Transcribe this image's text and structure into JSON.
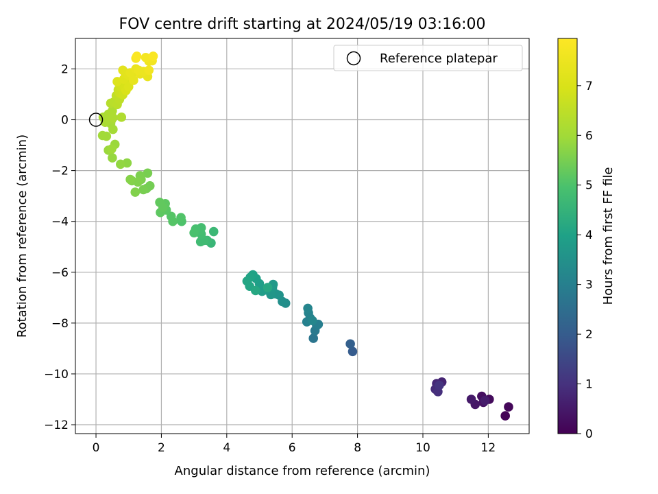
{
  "chart_data": {
    "type": "scatter",
    "title": "FOV centre drift starting at 2024/05/19 03:16:00",
    "xlabel": "Angular distance from reference (arcmin)",
    "ylabel": "Rotation from reference (arcmin)",
    "xlim": [
      -0.63,
      13.25
    ],
    "ylim": [
      -12.35,
      3.2
    ],
    "x_ticks": [
      0,
      2,
      4,
      6,
      8,
      10,
      12
    ],
    "y_ticks": [
      -12,
      -10,
      -8,
      -6,
      -4,
      -2,
      0,
      2
    ],
    "grid": true,
    "colormap": "viridis",
    "colorbar": {
      "label": "Hours from first FF file",
      "range": [
        0,
        7.95
      ],
      "ticks": [
        0,
        1,
        2,
        3,
        4,
        5,
        6,
        7
      ]
    },
    "legend": {
      "position": "top-right",
      "entries": [
        {
          "marker": "open-circle",
          "label": "Reference platepar"
        }
      ]
    },
    "reference_point": {
      "x": 0,
      "y": 0
    },
    "points": [
      [
        12.52,
        -11.65,
        0.05
      ],
      [
        12.62,
        -11.3,
        0.12
      ],
      [
        12.03,
        -11.0,
        0.2
      ],
      [
        11.8,
        -10.88,
        0.28
      ],
      [
        11.85,
        -11.12,
        0.35
      ],
      [
        11.6,
        -11.2,
        0.42
      ],
      [
        11.48,
        -11.0,
        0.5
      ],
      [
        11.9,
        -11.05,
        0.55
      ],
      [
        10.58,
        -10.32,
        0.7
      ],
      [
        10.42,
        -10.38,
        0.8
      ],
      [
        10.38,
        -10.6,
        0.88
      ],
      [
        10.46,
        -10.7,
        0.95
      ],
      [
        10.5,
        -10.45,
        1.05
      ],
      [
        7.85,
        -9.12,
        2.0
      ],
      [
        7.78,
        -8.82,
        2.1
      ],
      [
        6.65,
        -8.6,
        2.7
      ],
      [
        6.7,
        -8.3,
        2.8
      ],
      [
        6.75,
        -8.1,
        2.9
      ],
      [
        6.8,
        -8.05,
        2.95
      ],
      [
        6.55,
        -7.8,
        3.0
      ],
      [
        6.45,
        -7.95,
        3.05
      ],
      [
        6.5,
        -7.6,
        3.1
      ],
      [
        6.48,
        -7.42,
        3.15
      ],
      [
        6.62,
        -7.9,
        3.2
      ],
      [
        5.8,
        -7.22,
        3.4
      ],
      [
        5.7,
        -7.15,
        3.45
      ],
      [
        5.6,
        -6.9,
        3.55
      ],
      [
        5.5,
        -6.85,
        3.6
      ],
      [
        5.35,
        -6.88,
        3.65
      ],
      [
        5.4,
        -6.6,
        3.7
      ],
      [
        5.42,
        -6.48,
        3.75
      ],
      [
        5.2,
        -6.7,
        3.8
      ],
      [
        5.08,
        -6.75,
        3.85
      ],
      [
        5.0,
        -6.45,
        3.9
      ],
      [
        4.9,
        -6.25,
        3.95
      ],
      [
        4.8,
        -6.1,
        4.0
      ],
      [
        4.72,
        -6.2,
        4.05
      ],
      [
        4.62,
        -6.35,
        4.1
      ],
      [
        4.7,
        -6.55,
        4.1
      ],
      [
        4.88,
        -6.72,
        4.15
      ],
      [
        5.25,
        -6.6,
        4.15
      ],
      [
        3.52,
        -4.85,
        4.6
      ],
      [
        3.6,
        -4.4,
        4.65
      ],
      [
        3.4,
        -4.75,
        4.7
      ],
      [
        3.3,
        -4.75,
        4.75
      ],
      [
        3.2,
        -4.8,
        4.75
      ],
      [
        3.22,
        -4.5,
        4.8
      ],
      [
        3.18,
        -4.35,
        4.85
      ],
      [
        3.22,
        -4.25,
        4.85
      ],
      [
        3.05,
        -4.3,
        4.9
      ],
      [
        3.0,
        -4.45,
        4.95
      ],
      [
        2.62,
        -4.0,
        5.0
      ],
      [
        2.6,
        -3.85,
        5.05
      ],
      [
        2.35,
        -4.0,
        5.1
      ],
      [
        2.3,
        -3.8,
        5.1
      ],
      [
        2.15,
        -3.55,
        5.15
      ],
      [
        2.12,
        -3.3,
        5.2
      ],
      [
        1.97,
        -3.65,
        5.2
      ],
      [
        1.95,
        -3.25,
        5.25
      ],
      [
        2.05,
        -3.45,
        5.25
      ],
      [
        1.65,
        -2.6,
        5.45
      ],
      [
        1.55,
        -2.7,
        5.45
      ],
      [
        1.58,
        -2.1,
        5.5
      ],
      [
        1.45,
        -2.75,
        5.5
      ],
      [
        1.38,
        -2.35,
        5.55
      ],
      [
        1.35,
        -2.2,
        5.55
      ],
      [
        1.28,
        -2.45,
        5.6
      ],
      [
        1.2,
        -2.85,
        5.6
      ],
      [
        1.1,
        -2.4,
        5.6
      ],
      [
        1.05,
        -2.35,
        5.65
      ],
      [
        0.95,
        -1.7,
        5.75
      ],
      [
        0.75,
        -1.75,
        5.8
      ],
      [
        0.5,
        -1.5,
        5.85
      ],
      [
        0.58,
        -0.97,
        5.9
      ],
      [
        0.38,
        -1.2,
        5.9
      ],
      [
        0.48,
        -1.15,
        5.95
      ],
      [
        0.32,
        -0.65,
        6.0
      ],
      [
        0.2,
        -0.62,
        6.0
      ],
      [
        0.52,
        -0.38,
        6.05
      ],
      [
        0.45,
        -0.15,
        6.05
      ],
      [
        0.48,
        0.0,
        6.1
      ],
      [
        0.35,
        0.05,
        6.1
      ],
      [
        0.22,
        0.1,
        6.15
      ],
      [
        0.28,
        -0.1,
        6.15
      ],
      [
        0.38,
        0.22,
        6.15
      ],
      [
        0.42,
        0.15,
        6.2
      ],
      [
        0.5,
        0.35,
        6.2
      ],
      [
        0.52,
        0.08,
        6.2
      ],
      [
        0.78,
        0.1,
        6.25
      ],
      [
        0.45,
        0.65,
        6.35
      ],
      [
        0.55,
        0.7,
        6.4
      ],
      [
        0.65,
        0.6,
        6.45
      ],
      [
        0.72,
        0.8,
        6.5
      ],
      [
        0.62,
        0.95,
        6.55
      ],
      [
        0.68,
        1.18,
        6.7
      ],
      [
        0.72,
        1.05,
        6.75
      ],
      [
        0.82,
        0.98,
        6.8
      ],
      [
        0.75,
        1.3,
        6.85
      ],
      [
        0.8,
        1.42,
        6.9
      ],
      [
        0.88,
        1.25,
        6.95
      ],
      [
        0.92,
        1.15,
        7.0
      ],
      [
        0.95,
        1.55,
        7.05
      ],
      [
        0.65,
        1.5,
        7.1
      ],
      [
        1.0,
        1.3,
        7.1
      ],
      [
        0.85,
        1.6,
        7.15
      ],
      [
        0.9,
        1.8,
        7.2
      ],
      [
        0.82,
        1.95,
        7.25
      ],
      [
        1.0,
        1.75,
        7.25
      ],
      [
        1.1,
        1.8,
        7.3
      ],
      [
        1.05,
        1.85,
        7.35
      ],
      [
        1.55,
        1.85,
        7.35
      ],
      [
        1.15,
        1.55,
        7.35
      ],
      [
        1.58,
        1.7,
        7.4
      ],
      [
        1.22,
        2.0,
        7.45
      ],
      [
        1.35,
        1.8,
        7.45
      ],
      [
        1.45,
        1.9,
        7.5
      ],
      [
        1.3,
        1.95,
        7.5
      ],
      [
        1.62,
        2.3,
        7.6
      ],
      [
        1.72,
        2.32,
        7.65
      ],
      [
        1.62,
        1.95,
        7.65
      ],
      [
        1.52,
        2.45,
        7.7
      ],
      [
        1.22,
        2.42,
        7.75
      ],
      [
        1.75,
        2.5,
        7.85
      ],
      [
        1.25,
        2.5,
        7.9
      ]
    ]
  }
}
